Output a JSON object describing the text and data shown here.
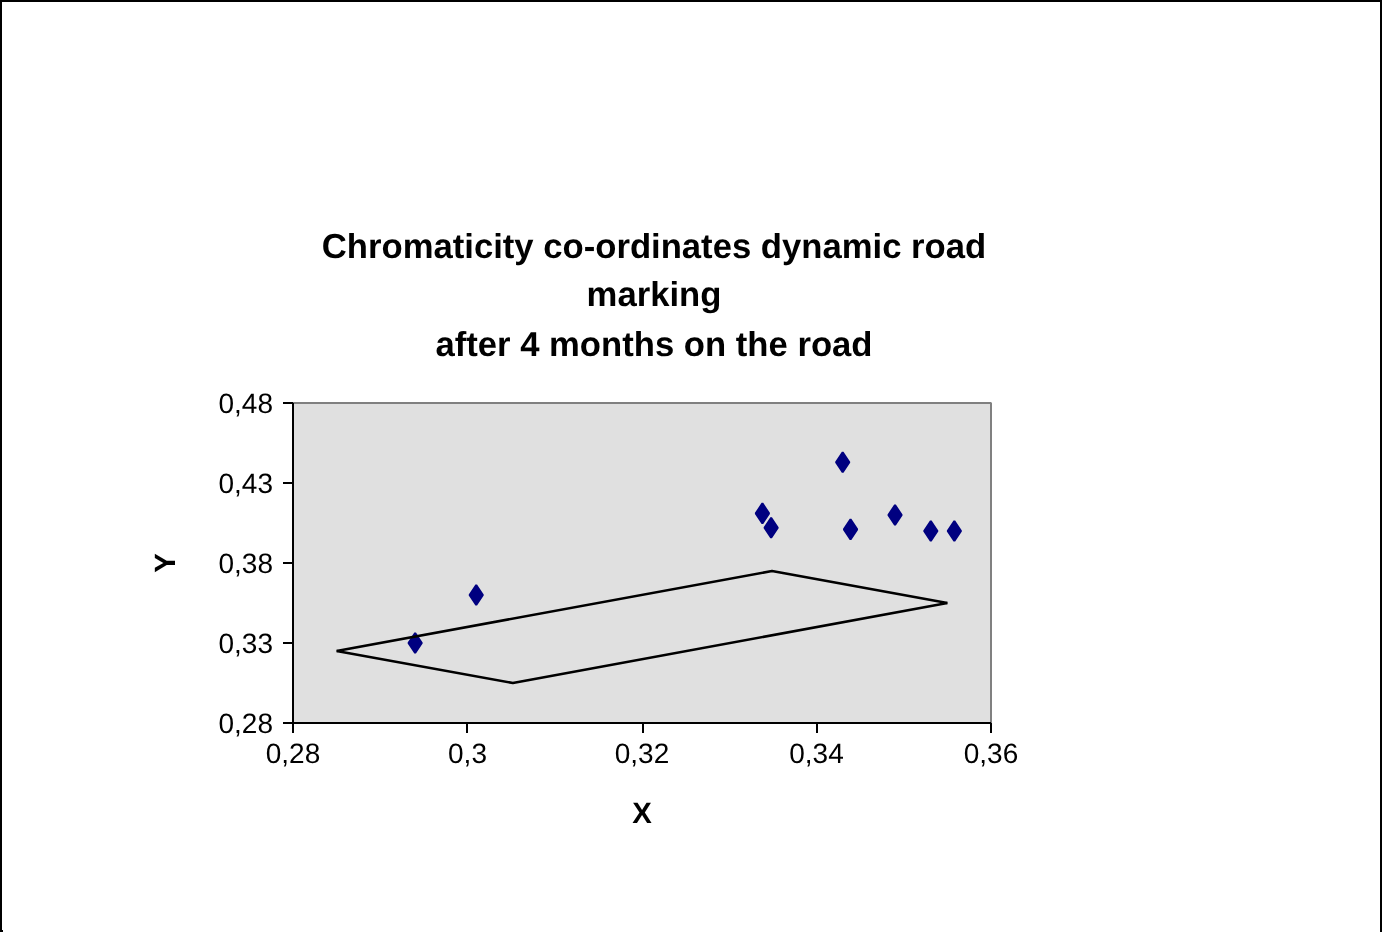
{
  "chart_data": {
    "type": "scatter",
    "title": "Chromaticity co-ordinates dynamic road\nmarking\nafter 4 months on the road",
    "xlabel": "X",
    "ylabel": "Y",
    "xlim": [
      0.28,
      0.36
    ],
    "ylim": [
      0.28,
      0.48
    ],
    "xticks": [
      {
        "value": 0.28,
        "label": "0,28"
      },
      {
        "value": 0.3,
        "label": "0,3"
      },
      {
        "value": 0.32,
        "label": "0,32"
      },
      {
        "value": 0.34,
        "label": "0,34"
      },
      {
        "value": 0.36,
        "label": "0,36"
      }
    ],
    "yticks": [
      {
        "value": 0.28,
        "label": "0,28"
      },
      {
        "value": 0.33,
        "label": "0,33"
      },
      {
        "value": 0.38,
        "label": "0,38"
      },
      {
        "value": 0.43,
        "label": "0,43"
      },
      {
        "value": 0.48,
        "label": "0,48"
      }
    ],
    "grid": false,
    "series": [
      {
        "marker": "diamond",
        "color": "#000080",
        "x": [
          0.294,
          0.301,
          0.3338,
          0.3348,
          0.343,
          0.3439,
          0.349,
          0.3531,
          0.3558
        ],
        "values": [
          0.33,
          0.36,
          0.411,
          0.402,
          0.443,
          0.401,
          0.41,
          0.4,
          0.4
        ]
      },
      {
        "type": "line",
        "marker": "none",
        "line_style": "solid",
        "color": "#000000",
        "x": [
          0.285,
          0.3349,
          0.355
        ],
        "values": [
          0.325,
          0.375,
          0.355
        ]
      },
      {
        "type": "line",
        "marker": "none",
        "line_style": "solid",
        "color": "#000000",
        "x": [
          0.285,
          0.3052,
          0.355
        ],
        "values": [
          0.325,
          0.305,
          0.355
        ]
      }
    ]
  }
}
